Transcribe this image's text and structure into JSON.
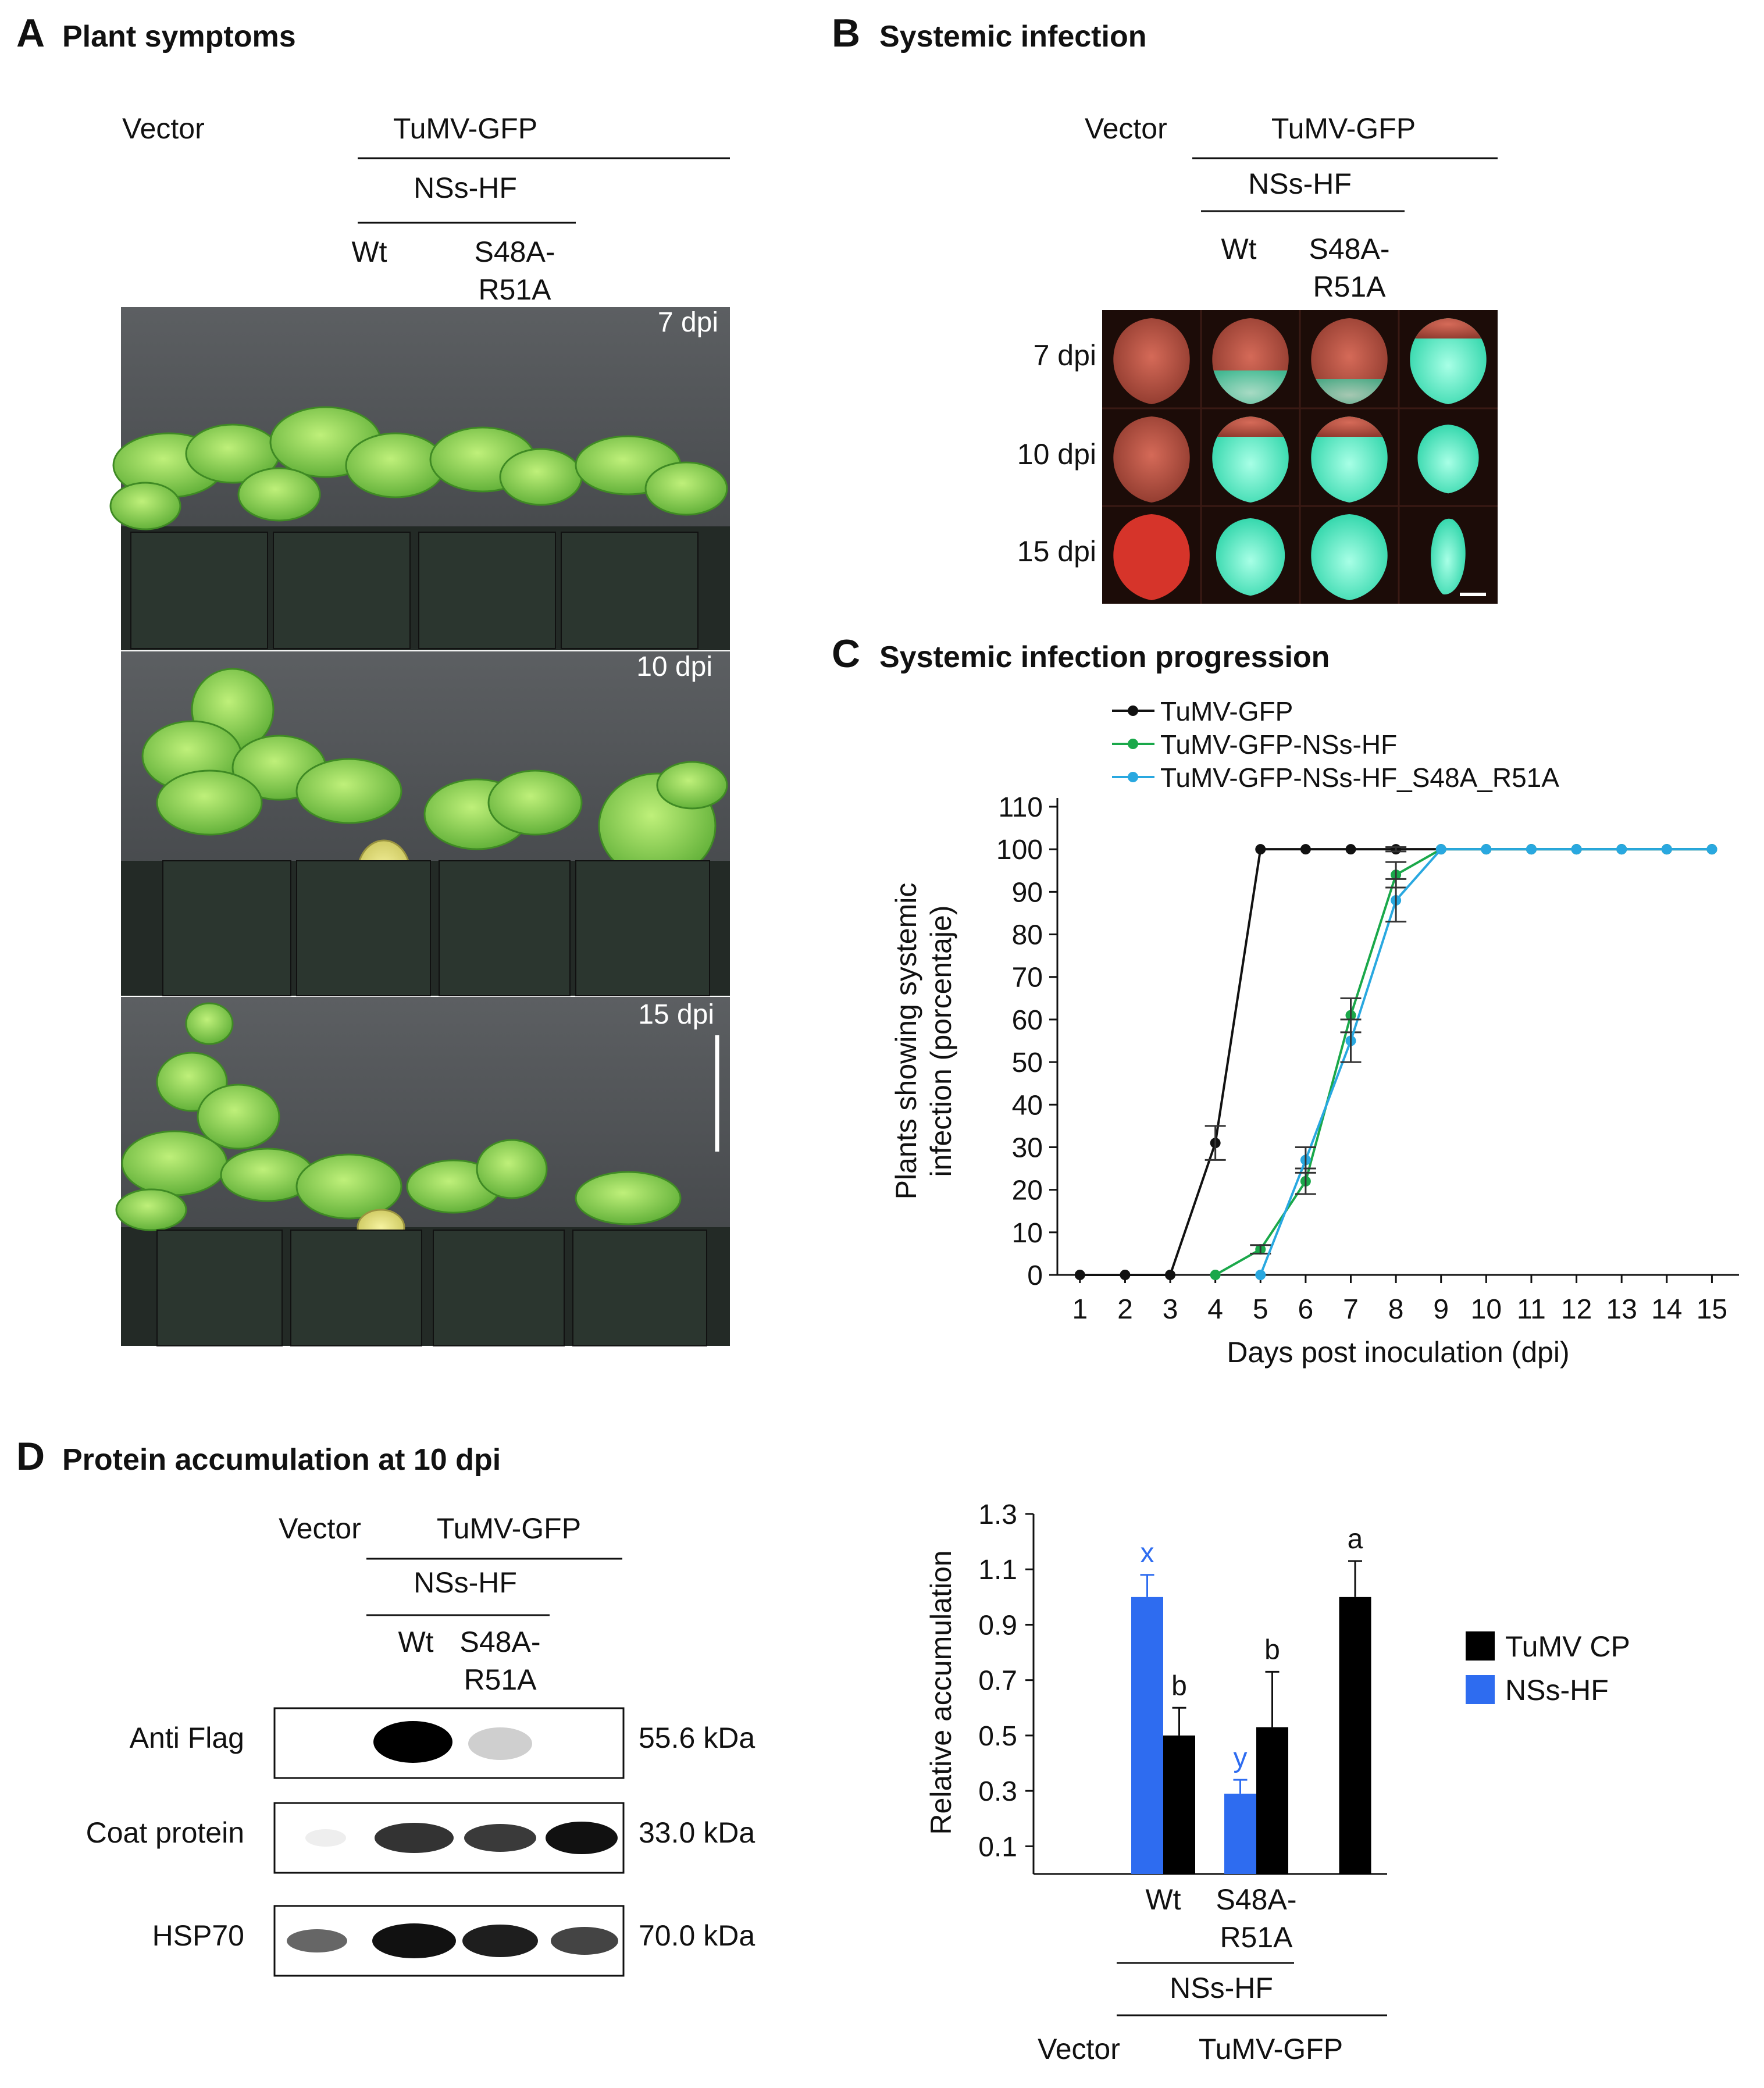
{
  "panel_a": {
    "letter": "A",
    "title": "Plant symptoms",
    "hdr_vector": "Vector",
    "hdr_virus": "TuMV-GFP",
    "hdr_nss": "NSs-HF",
    "hdr_wt": "Wt",
    "hdr_mut1": "S48A-",
    "hdr_mut2": "R51A",
    "labels": [
      "7 dpi",
      "10 dpi",
      "15 dpi"
    ]
  },
  "panel_b": {
    "letter": "B",
    "title": "Systemic infection",
    "hdr_vector": "Vector",
    "hdr_virus": "TuMV-GFP",
    "hdr_nss": "NSs-HF",
    "hdr_wt": "Wt",
    "hdr_mut1": "S48A-",
    "hdr_mut2": "R51A",
    "rows": [
      "7 dpi",
      "10 dpi",
      "15 dpi"
    ]
  },
  "panel_c": {
    "letter": "C",
    "title": "Systemic infection progression"
  },
  "panel_d": {
    "letter": "D",
    "title": "Protein accumulation at 10 dpi",
    "hdr_vector": "Vector",
    "hdr_virus": "TuMV-GFP",
    "hdr_nss": "NSs-HF",
    "hdr_wt": "Wt",
    "hdr_mut1": "S48A-",
    "hdr_mut2": "R51A",
    "blot_rows": [
      {
        "label": "Anti Flag",
        "size": "55.6 kDa"
      },
      {
        "label": "Coat protein",
        "size": "33.0 kDa"
      },
      {
        "label": "HSP70",
        "size": "70.0 kDa"
      }
    ],
    "bar_x_wt": "Wt",
    "bar_x_mut1": "S48A-",
    "bar_x_mut2": "R51A",
    "bar_x_nss": "NSs-HF",
    "bar_x_vector": "Vector",
    "bar_x_virus": "TuMV-GFP"
  },
  "chart_data": [
    {
      "type": "line",
      "title": "Systemic infection progression",
      "xlabel": "Days post inoculation (dpi)",
      "ylabel": "Plants showing systemic infection (porcentaje)",
      "x": [
        1,
        2,
        3,
        4,
        5,
        6,
        7,
        8,
        9,
        10,
        11,
        12,
        13,
        14,
        15
      ],
      "ylim": [
        0,
        110
      ],
      "yticks": [
        0,
        10,
        20,
        30,
        40,
        50,
        60,
        70,
        80,
        90,
        100,
        110
      ],
      "series": [
        {
          "name": "TuMV-GFP",
          "color": "#111111",
          "points": [
            [
              1,
              0
            ],
            [
              2,
              0
            ],
            [
              3,
              0
            ],
            [
              4,
              31
            ],
            [
              5,
              100
            ],
            [
              6,
              100
            ],
            [
              7,
              100
            ],
            [
              8,
              100
            ],
            [
              9,
              100
            ],
            [
              10,
              100
            ],
            [
              11,
              100
            ],
            [
              12,
              100
            ],
            [
              13,
              100
            ],
            [
              14,
              100
            ],
            [
              15,
              100
            ]
          ],
          "err": [
            [
              4,
              4
            ],
            [
              8,
              0.5
            ]
          ]
        },
        {
          "name": "TuMV-GFP-NSs-HF",
          "color": "#1aa84a",
          "points": [
            [
              4,
              0
            ],
            [
              5,
              6
            ],
            [
              6,
              22
            ],
            [
              7,
              61
            ],
            [
              8,
              94
            ],
            [
              9,
              100
            ],
            [
              10,
              100
            ],
            [
              11,
              100
            ],
            [
              12,
              100
            ],
            [
              13,
              100
            ],
            [
              14,
              100
            ],
            [
              15,
              100
            ]
          ],
          "err": [
            [
              5,
              1
            ],
            [
              6,
              3
            ],
            [
              7,
              4
            ],
            [
              8,
              3
            ]
          ]
        },
        {
          "name": "TuMV-GFP-NSs-HF_S48A_R51A",
          "color": "#29a8e0",
          "points": [
            [
              5,
              0
            ],
            [
              6,
              27
            ],
            [
              7,
              55
            ],
            [
              8,
              88
            ],
            [
              9,
              100
            ],
            [
              10,
              100
            ],
            [
              11,
              100
            ],
            [
              12,
              100
            ],
            [
              13,
              100
            ],
            [
              14,
              100
            ],
            [
              15,
              100
            ]
          ],
          "err": [
            [
              6,
              3
            ],
            [
              7,
              5
            ],
            [
              8,
              5
            ]
          ]
        }
      ]
    },
    {
      "type": "bar",
      "ylabel": "Relative accumulation",
      "ylim": [
        0,
        1.3
      ],
      "yticks": [
        0.1,
        0.3,
        0.5,
        0.7,
        0.9,
        1.1,
        1.3
      ],
      "categories": [
        "Vector",
        "Wt",
        "S48A-R51A",
        "TuMV-GFP"
      ],
      "series": [
        {
          "name": "TuMV CP",
          "color": "#000000",
          "values": [
            null,
            0.5,
            0.53,
            1.0
          ],
          "err": [
            null,
            0.1,
            0.2,
            0.13
          ],
          "letters": [
            "",
            "b",
            "b",
            "a"
          ]
        },
        {
          "name": "NSs-HF",
          "color": "#2e6cf0",
          "values": [
            null,
            1.0,
            0.29,
            null
          ],
          "err": [
            null,
            0.08,
            0.05,
            null
          ],
          "letters": [
            "",
            "x",
            "y",
            ""
          ]
        }
      ]
    }
  ]
}
